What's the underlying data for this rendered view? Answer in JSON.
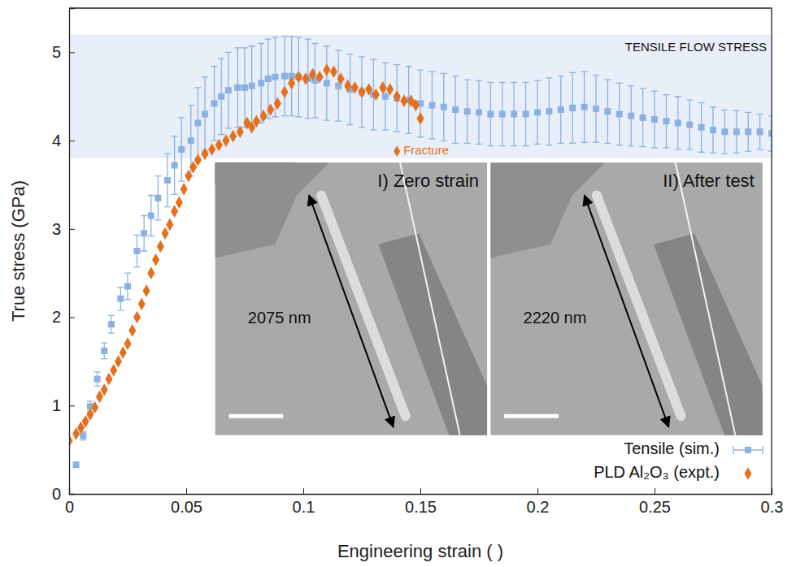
{
  "chart_data": {
    "type": "scatter",
    "x_label": "Engineering strain ( )",
    "y_label": "True stress (GPa)",
    "xlim": [
      0,
      0.3
    ],
    "ylim": [
      0,
      5.5
    ],
    "xticks": [
      0,
      0.05,
      0.1,
      0.15,
      0.2,
      0.25,
      0.3
    ],
    "yticks": [
      0,
      1,
      2,
      3,
      4,
      5
    ],
    "grid": false,
    "legend": "bottom-right",
    "band": {
      "label": "TENSILE FLOW STRESS",
      "ymin": 3.8,
      "ymax": 5.2
    },
    "annotations": [
      {
        "text": "Fracture",
        "x": 0.14,
        "y": 3.88
      }
    ],
    "insets": [
      {
        "title": "I) Zero strain",
        "length_label": "2075 nm"
      },
      {
        "title": "II) After test",
        "length_label": "2220 nm"
      }
    ],
    "series": [
      {
        "name": "Tensile (sim.)",
        "color": "#8ab1e2",
        "marker": "square",
        "x": [
          0.003,
          0.006,
          0.009,
          0.012,
          0.015,
          0.018,
          0.022,
          0.025,
          0.029,
          0.032,
          0.035,
          0.038,
          0.042,
          0.045,
          0.048,
          0.052,
          0.055,
          0.058,
          0.062,
          0.065,
          0.068,
          0.072,
          0.075,
          0.078,
          0.082,
          0.085,
          0.088,
          0.092,
          0.095,
          0.098,
          0.102,
          0.105,
          0.11,
          0.115,
          0.12,
          0.125,
          0.13,
          0.135,
          0.14,
          0.145,
          0.15,
          0.155,
          0.16,
          0.165,
          0.17,
          0.175,
          0.18,
          0.185,
          0.19,
          0.195,
          0.2,
          0.205,
          0.21,
          0.215,
          0.22,
          0.225,
          0.23,
          0.235,
          0.24,
          0.245,
          0.25,
          0.255,
          0.26,
          0.265,
          0.27,
          0.275,
          0.28,
          0.285,
          0.29,
          0.295,
          0.3
        ],
        "values": [
          0.33,
          0.66,
          0.99,
          1.3,
          1.62,
          1.92,
          2.21,
          2.35,
          2.75,
          2.95,
          3.15,
          3.35,
          3.55,
          3.72,
          3.9,
          4.0,
          4.2,
          4.3,
          4.42,
          4.5,
          4.57,
          4.6,
          4.6,
          4.62,
          4.65,
          4.7,
          4.72,
          4.73,
          4.73,
          4.72,
          4.7,
          4.68,
          4.65,
          4.62,
          4.58,
          4.55,
          4.52,
          4.5,
          4.48,
          4.46,
          4.42,
          4.4,
          4.38,
          4.35,
          4.33,
          4.32,
          4.3,
          4.3,
          4.3,
          4.3,
          4.32,
          4.33,
          4.35,
          4.37,
          4.38,
          4.36,
          4.33,
          4.3,
          4.28,
          4.26,
          4.24,
          4.22,
          4.2,
          4.18,
          4.15,
          4.12,
          4.1,
          4.1,
          4.1,
          4.1,
          4.08
        ],
        "errors": [
          0.03,
          0.05,
          0.06,
          0.08,
          0.09,
          0.1,
          0.13,
          0.15,
          0.18,
          0.2,
          0.23,
          0.25,
          0.3,
          0.33,
          0.36,
          0.4,
          0.4,
          0.42,
          0.42,
          0.43,
          0.43,
          0.45,
          0.45,
          0.45,
          0.45,
          0.45,
          0.45,
          0.45,
          0.45,
          0.45,
          0.45,
          0.42,
          0.42,
          0.4,
          0.4,
          0.4,
          0.4,
          0.38,
          0.38,
          0.38,
          0.38,
          0.38,
          0.38,
          0.38,
          0.36,
          0.36,
          0.36,
          0.36,
          0.36,
          0.36,
          0.36,
          0.38,
          0.38,
          0.4,
          0.4,
          0.38,
          0.36,
          0.35,
          0.34,
          0.33,
          0.32,
          0.3,
          0.3,
          0.28,
          0.28,
          0.26,
          0.25,
          0.24,
          0.22,
          0.2,
          0.2
        ]
      },
      {
        "name": "PLD Al₂O₃ (expt.)",
        "color": "#e4701e",
        "marker": "diamond",
        "x": [
          0,
          0.003,
          0.005,
          0.007,
          0.009,
          0.011,
          0.013,
          0.015,
          0.017,
          0.019,
          0.021,
          0.023,
          0.025,
          0.027,
          0.029,
          0.031,
          0.033,
          0.035,
          0.037,
          0.039,
          0.041,
          0.043,
          0.045,
          0.047,
          0.049,
          0.051,
          0.053,
          0.055,
          0.058,
          0.061,
          0.064,
          0.067,
          0.07,
          0.073,
          0.076,
          0.078,
          0.08,
          0.083,
          0.086,
          0.089,
          0.092,
          0.095,
          0.098,
          0.101,
          0.104,
          0.107,
          0.11,
          0.113,
          0.116,
          0.119,
          0.122,
          0.125,
          0.128,
          0.131,
          0.134,
          0.137,
          0.14,
          0.143,
          0.146,
          0.148,
          0.15
        ],
        "values": [
          0.6,
          0.68,
          0.75,
          0.82,
          0.9,
          0.98,
          1.1,
          1.18,
          1.3,
          1.4,
          1.5,
          1.6,
          1.7,
          1.85,
          2.0,
          2.15,
          2.3,
          2.5,
          2.65,
          2.8,
          2.95,
          3.05,
          3.2,
          3.3,
          3.45,
          3.6,
          3.7,
          3.78,
          3.85,
          3.9,
          3.95,
          4.0,
          4.05,
          4.1,
          4.2,
          4.15,
          4.22,
          4.28,
          4.35,
          4.42,
          4.55,
          4.65,
          4.72,
          4.7,
          4.75,
          4.72,
          4.8,
          4.78,
          4.7,
          4.62,
          4.6,
          4.55,
          4.58,
          4.52,
          4.6,
          4.58,
          4.5,
          4.45,
          4.45,
          4.4,
          4.25
        ]
      }
    ]
  }
}
